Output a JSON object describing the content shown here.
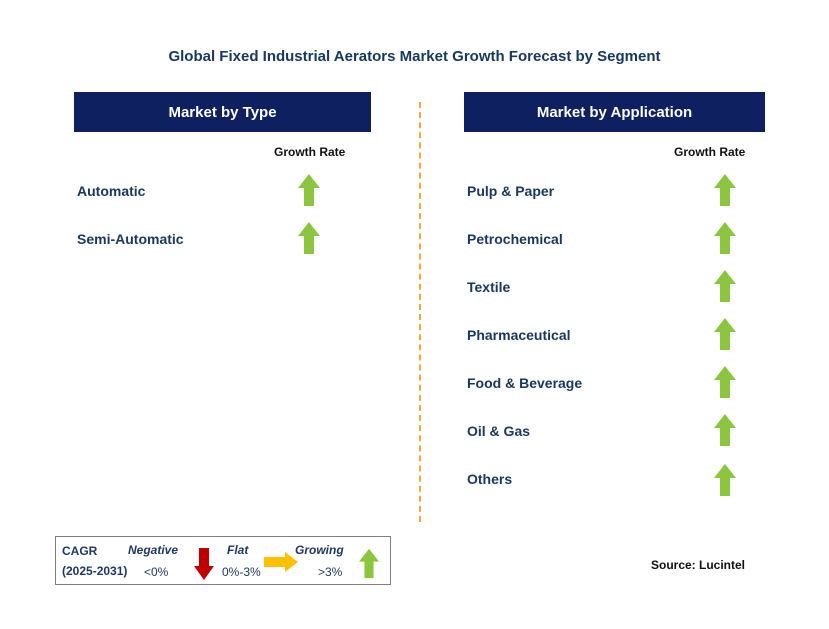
{
  "title": "Global Fixed Industrial Aerators Market Growth Forecast by Segment",
  "left_panel": {
    "header": "Market by Type",
    "growth_label": "Growth Rate",
    "items": [
      {
        "label": "Automatic",
        "trend": "growing"
      },
      {
        "label": "Semi-Automatic",
        "trend": "growing"
      }
    ]
  },
  "right_panel": {
    "header": "Market by Application",
    "growth_label": "Growth Rate",
    "items": [
      {
        "label": "Pulp & Paper",
        "trend": "growing"
      },
      {
        "label": "Petrochemical",
        "trend": "growing"
      },
      {
        "label": "Textile",
        "trend": "growing"
      },
      {
        "label": "Pharmaceutical",
        "trend": "growing"
      },
      {
        "label": "Food & Beverage",
        "trend": "growing"
      },
      {
        "label": "Oil & Gas",
        "trend": "growing"
      },
      {
        "label": "Others",
        "trend": "growing"
      }
    ]
  },
  "legend": {
    "cagr": "CAGR",
    "period": "(2025-2031)",
    "negative": "Negative",
    "negative_range": "<0%",
    "flat": "Flat",
    "flat_range": "0%-3%",
    "growing": "Growing",
    "growing_range": ">3%"
  },
  "source": "Source: Lucintel",
  "colors": {
    "header_bg": "#0e2060",
    "growing_arrow": "#8cc63f",
    "negative_arrow": "#c00000",
    "flat_arrow": "#ffc000",
    "divider": "#f2a93b"
  },
  "icons": {
    "growing": "up-arrow-icon",
    "negative": "down-arrow-icon",
    "flat": "right-arrow-icon"
  }
}
